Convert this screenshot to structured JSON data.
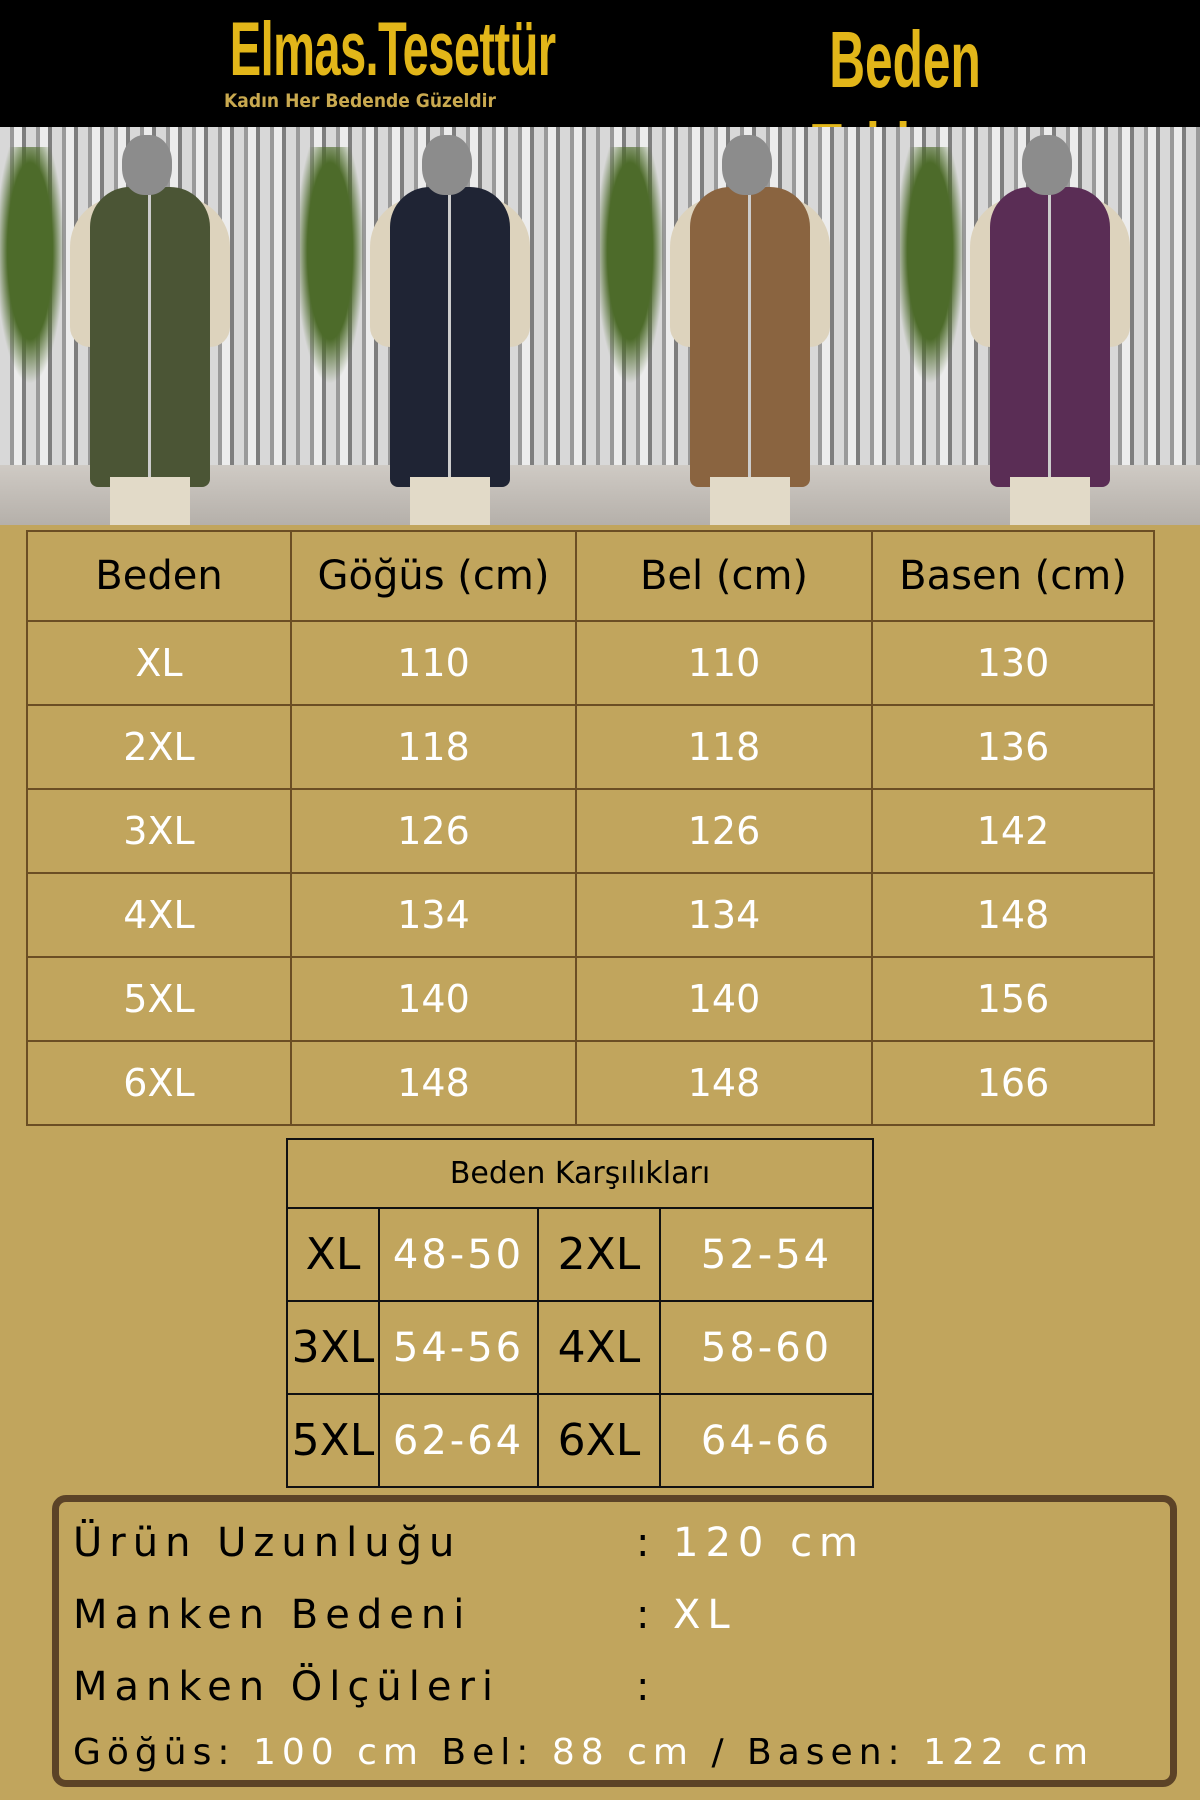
{
  "header": {
    "brand": "Elmas.Tesettür",
    "tagline": "Kadın Her Bedende Güzeldir",
    "title": "Beden Tablosu"
  },
  "photos": [
    {
      "garment_color": "#4b5535"
    },
    {
      "garment_color": "#1f2434"
    },
    {
      "garment_color": "#8a6440"
    },
    {
      "garment_color": "#5a2d55"
    }
  ],
  "size_table": {
    "headers": [
      "Beden",
      "Göğüs (cm)",
      "Bel (cm)",
      "Basen (cm)"
    ],
    "rows": [
      [
        "XL",
        "110",
        "110",
        "130"
      ],
      [
        "2XL",
        "118",
        "118",
        "136"
      ],
      [
        "3XL",
        "126",
        "126",
        "142"
      ],
      [
        "4XL",
        "134",
        "134",
        "148"
      ],
      [
        "5XL",
        "140",
        "140",
        "156"
      ],
      [
        "6XL",
        "148",
        "148",
        "166"
      ]
    ]
  },
  "conversion_table": {
    "title": "Beden Karşılıkları",
    "rows": [
      [
        "XL",
        "48-50",
        "2XL",
        "52-54"
      ],
      [
        "3XL",
        "54-56",
        "4XL",
        "58-60"
      ],
      [
        "5XL",
        "62-64",
        "6XL",
        "64-66"
      ]
    ]
  },
  "info": {
    "length_label": "Ürün Uzunluğu",
    "length_value": "120 cm",
    "model_size_label": "Manken Bedeni",
    "model_size_value": "XL",
    "model_measure_label": "Manken Ölçüleri",
    "colon": ":",
    "chest_label": "Göğüs:",
    "chest_value": "100 cm",
    "waist_label": "Bel:",
    "waist_value": "88 cm",
    "sep": "/",
    "hip_label": "Basen:",
    "hip_value": "122 cm"
  },
  "colors": {
    "background": "#c1a55d",
    "accent": "#e2b619",
    "border": "#5c4327"
  }
}
